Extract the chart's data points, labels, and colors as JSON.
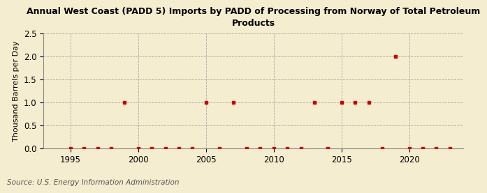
{
  "title": "Annual West Coast (PADD 5) Imports by PADD of Processing from Norway of Total Petroleum\nProducts",
  "ylabel": "Thousand Barrels per Day",
  "source": "Source: U.S. Energy Information Administration",
  "background_color": "#f5edcf",
  "plot_background_color": "#f5edcf",
  "marker_color": "#cc0000",
  "marker": "s",
  "marker_size": 3.5,
  "xlim": [
    1993,
    2024
  ],
  "ylim": [
    0.0,
    2.5
  ],
  "yticks": [
    0.0,
    0.5,
    1.0,
    1.5,
    2.0,
    2.5
  ],
  "xticks": [
    1995,
    2000,
    2005,
    2010,
    2015,
    2020
  ],
  "grid_color": "#aaaaaa",
  "grid_style": "--",
  "data": {
    "1995": 0.0,
    "1996": 0.0,
    "1997": 0.0,
    "1998": 0.0,
    "1999": 1.0,
    "2000": 0.0,
    "2001": 0.0,
    "2002": 0.0,
    "2003": 0.0,
    "2004": 0.0,
    "2005": 1.0,
    "2006": 0.0,
    "2007": 1.0,
    "2008": 0.0,
    "2009": 0.0,
    "2010": 0.0,
    "2011": 0.0,
    "2012": 0.0,
    "2013": 1.0,
    "2014": 0.0,
    "2015": 1.0,
    "2016": 1.0,
    "2017": 1.0,
    "2018": 0.0,
    "2019": 2.0,
    "2020": 0.0,
    "2021": 0.0,
    "2022": 0.0,
    "2023": 0.0
  }
}
